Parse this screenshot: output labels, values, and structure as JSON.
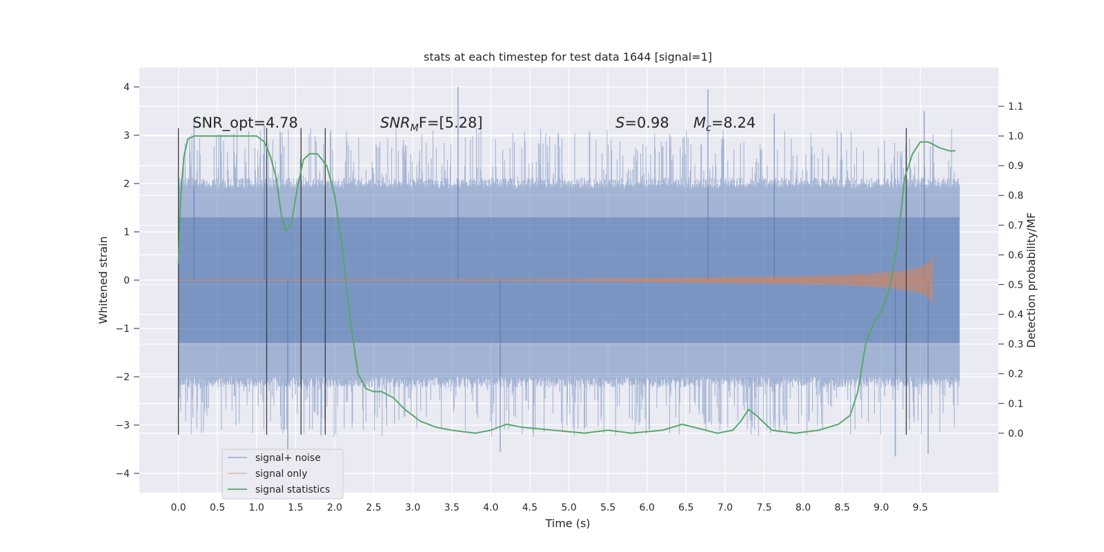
{
  "chart_data": {
    "type": "line",
    "title": "stats at each timestep for test data 1644 [signal=1]",
    "xlabel": "Time (s)",
    "ylabel_left": "Whitened strain",
    "ylabel_right": "Detection probability/MF",
    "xlim": [
      -0.5,
      10.5
    ],
    "ylim_left": [
      -4.4,
      4.4
    ],
    "ylim_right": [
      -0.2,
      1.23
    ],
    "x_ticks": [
      "0.0",
      "0.5",
      "1.0",
      "1.5",
      "2.0",
      "2.5",
      "3.0",
      "3.5",
      "4.0",
      "4.5",
      "5.0",
      "5.5",
      "6.0",
      "6.5",
      "7.0",
      "7.5",
      "8.0",
      "8.5",
      "9.0",
      "9.5"
    ],
    "y_ticks_left": [
      "4",
      "3",
      "2",
      "1",
      "0",
      "−1",
      "−2",
      "−3",
      "−4"
    ],
    "y_ticks_right": [
      "1.1",
      "1.0",
      "0.9",
      "0.8",
      "0.7",
      "0.6",
      "0.5",
      "0.4",
      "0.3",
      "0.2",
      "0.1",
      "0.0"
    ],
    "grid": true,
    "legend_position": "lower-left",
    "annotations": {
      "snr_opt": "SNR_opt=4.78",
      "snr_mf_italic": "SNR",
      "snr_mf_sub": "M",
      "snr_mf_rest": "F=[5.28]",
      "s_italic": "S",
      "s_rest": "=0.98",
      "mc_italic": "M",
      "mc_sub": "c",
      "mc_rest": "=8.24"
    },
    "series": [
      {
        "name": "signal+ noise",
        "color": "#4c72b0",
        "axis": "left",
        "band_core": [
          -1.3,
          1.3
        ],
        "band_spread": [
          -2.0,
          1.9
        ],
        "peaks": [
          [
            0.2,
            3.3
          ],
          [
            1.1,
            3.2
          ],
          [
            3.58,
            4.0
          ],
          [
            6.78,
            3.95
          ],
          [
            7.63,
            3.45
          ],
          [
            9.55,
            3.5
          ]
        ],
        "troughs": [
          [
            1.4,
            -3.7
          ],
          [
            4.12,
            -3.55
          ],
          [
            9.18,
            -3.65
          ],
          [
            9.6,
            -3.6
          ]
        ],
        "x_range": [
          0.0,
          10.0
        ]
      },
      {
        "name": "signal only",
        "color": "#dd8452",
        "axis": "left",
        "envelope": {
          "x": [
            0.0,
            5.0,
            6.0,
            7.0,
            8.0,
            8.5,
            9.0,
            9.3,
            9.5,
            9.62,
            9.66
          ],
          "amp": [
            0.0,
            0.02,
            0.04,
            0.06,
            0.08,
            0.1,
            0.15,
            0.2,
            0.27,
            0.38,
            0.5
          ]
        },
        "x_range": [
          0.0,
          9.66
        ]
      },
      {
        "name": "signal statistics",
        "color": "#55a868",
        "axis": "right",
        "x": [
          0.0,
          0.03,
          0.07,
          0.12,
          0.2,
          0.35,
          0.6,
          0.85,
          1.0,
          1.1,
          1.18,
          1.25,
          1.32,
          1.38,
          1.45,
          1.52,
          1.6,
          1.68,
          1.78,
          1.9,
          2.0,
          2.1,
          2.2,
          2.3,
          2.4,
          2.5,
          2.6,
          2.75,
          2.9,
          3.1,
          3.3,
          3.5,
          3.8,
          4.0,
          4.2,
          4.4,
          4.8,
          5.2,
          5.5,
          5.8,
          6.2,
          6.45,
          6.6,
          6.9,
          7.1,
          7.2,
          7.3,
          7.4,
          7.6,
          7.9,
          8.2,
          8.45,
          8.6,
          8.7,
          8.8,
          8.9,
          9.0,
          9.1,
          9.2,
          9.3,
          9.4,
          9.5,
          9.6,
          9.75,
          9.87,
          9.95
        ],
        "values": [
          0.57,
          0.8,
          0.93,
          0.99,
          1.0,
          1.0,
          1.0,
          1.0,
          1.0,
          0.98,
          0.93,
          0.86,
          0.73,
          0.68,
          0.71,
          0.82,
          0.92,
          0.94,
          0.94,
          0.9,
          0.8,
          0.62,
          0.38,
          0.2,
          0.15,
          0.14,
          0.14,
          0.12,
          0.08,
          0.04,
          0.02,
          0.01,
          0.0,
          0.01,
          0.03,
          0.02,
          0.01,
          0.0,
          0.01,
          0.0,
          0.01,
          0.03,
          0.02,
          0.0,
          0.01,
          0.04,
          0.08,
          0.06,
          0.01,
          0.0,
          0.01,
          0.03,
          0.06,
          0.14,
          0.3,
          0.37,
          0.41,
          0.48,
          0.62,
          0.86,
          0.94,
          0.98,
          0.98,
          0.96,
          0.95,
          0.95
        ]
      },
      {
        "name": "markers",
        "color": "#3a3a3a",
        "axis": "left",
        "x": [
          0.0,
          1.13,
          1.57,
          1.88,
          9.32
        ],
        "y_range": [
          -3.2,
          3.15
        ]
      }
    ]
  }
}
